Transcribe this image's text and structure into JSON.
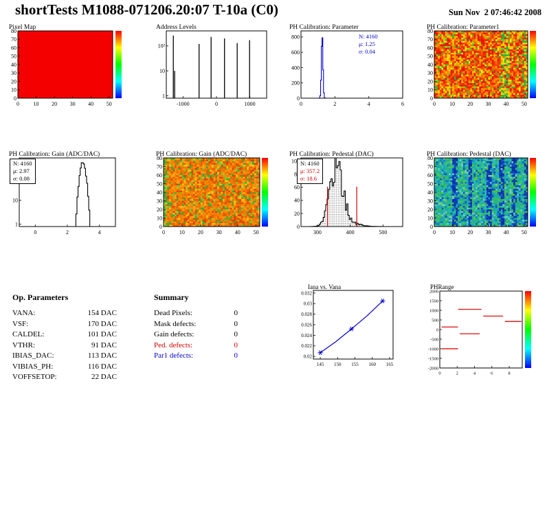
{
  "header": {
    "title": "shortTests M1088-071206.20:07 T-10a (C0)",
    "date": "Sun Nov  2 07:46:42 2008"
  },
  "op_parameters": {
    "heading": "Op. Parameters",
    "rows": [
      {
        "label": "VANA:",
        "value": "154 DAC"
      },
      {
        "label": "VSF:",
        "value": "170 DAC"
      },
      {
        "label": "CALDEL:",
        "value": "101 DAC"
      },
      {
        "label": "VTHR:",
        "value": "91 DAC"
      },
      {
        "label": "IBIAS_DAC:",
        "value": "113 DAC"
      },
      {
        "label": "VIBIAS_PH:",
        "value": "116 DAC"
      },
      {
        "label": "VOFFSETOP:",
        "value": "22 DAC"
      }
    ]
  },
  "summary": {
    "heading": "Summary",
    "rows": [
      {
        "label": "Dead Pixels:",
        "value": "0",
        "color": "#000000"
      },
      {
        "label": "Mask defects:",
        "value": "0",
        "color": "#000000"
      },
      {
        "label": "Gain defects:",
        "value": "0",
        "color": "#000000"
      },
      {
        "label": "Ped. defects:",
        "value": "0",
        "color": "#cc0000"
      },
      {
        "label": "Par1 defects:",
        "value": "0",
        "color": "#0000cc"
      }
    ]
  },
  "chart_data": [
    {
      "id": "pixel_map",
      "type": "solid_heatmap",
      "title": "Pixel Map",
      "x_range": [
        0,
        52
      ],
      "y_range": [
        0,
        80
      ],
      "xticks": [
        0,
        10,
        20,
        30,
        40,
        50
      ],
      "yticks": [
        0,
        10,
        20,
        30,
        40,
        50,
        60,
        70,
        80
      ],
      "fill": "#f40000",
      "colorbar": [
        "#ff0000",
        "#ffff00",
        "#00ff00",
        "#00ffff",
        "#0000ff"
      ]
    },
    {
      "id": "address_levels",
      "type": "spike_hist",
      "title": "Address Levels",
      "x_range": [
        -1500,
        1500
      ],
      "xticks": [
        -1000,
        0,
        1000
      ],
      "floor": 0.8,
      "ymax": 400,
      "log_labels": [
        {
          "v": 1,
          "label": "1"
        },
        {
          "v": 10,
          "label": "10"
        },
        {
          "v": 100,
          "label": "10²"
        }
      ],
      "spikes": [
        {
          "x": -1290,
          "count": 260
        },
        {
          "x": -1250,
          "count": 10
        },
        {
          "x": -520,
          "count": 120
        },
        {
          "x": -160,
          "count": 230
        },
        {
          "x": 240,
          "count": 200
        },
        {
          "x": 620,
          "count": 130
        },
        {
          "x": 990,
          "count": 170
        }
      ]
    },
    {
      "id": "ph_parameter",
      "type": "gauss_hist",
      "title": "PH Calibration: Parameter",
      "color": "#0000cc",
      "x_range": [
        0,
        6
      ],
      "xticks": [
        0,
        2,
        4,
        6
      ],
      "y_range": [
        0,
        880
      ],
      "yticks": [
        0,
        200,
        400,
        600,
        800
      ],
      "mean": 1.25,
      "sigma_draw": 0.045,
      "peak": 830,
      "bins": 140,
      "stats": {
        "n": "N: 4160",
        "mu": "μ: 1.25",
        "sigma": "σ: 0.04"
      },
      "stats_color": "#0000cc"
    },
    {
      "id": "ph_parameter1_map",
      "type": "noise_heatmap",
      "title": "PH Calibration: Parameter1",
      "x_range": [
        0,
        52
      ],
      "y_range": [
        0,
        80
      ],
      "xticks": [
        0,
        10,
        20,
        30,
        40,
        50
      ],
      "yticks": [
        0,
        10,
        20,
        30,
        40,
        50,
        60,
        70,
        80
      ],
      "seed": 7,
      "palette": [
        [
          "#e81800",
          26
        ],
        [
          "#f23b00",
          20
        ],
        [
          "#fa6a00",
          16
        ],
        [
          "#ff9100",
          12
        ],
        [
          "#ffc400",
          9
        ],
        [
          "#ffe800",
          6
        ],
        [
          "#9fd400",
          5
        ],
        [
          "#37b33c",
          6
        ]
      ],
      "streaks": [
        {
          "x0": 7,
          "x1": 9,
          "colors": [
            "#7cc832",
            "#ffd800"
          ],
          "p": 0.35
        },
        {
          "x0": 37.5,
          "x1": 41.5,
          "colors": [
            "#2fae3e",
            "#7cc832",
            "#ffd800"
          ],
          "p": 0.6
        },
        {
          "x0": 49,
          "x1": 52,
          "colors": [
            "#2fae3e",
            "#ffd800"
          ],
          "p": 0.5
        }
      ],
      "colorbar": [
        "#ff0000",
        "#ffff00",
        "#00ff00",
        "#00ffff",
        "#0000ff"
      ]
    },
    {
      "id": "gain_hist",
      "type": "gauss_hist_log",
      "title": "PH Calibration: Gain (ADC/DAC)",
      "color": "#000000",
      "x_range": [
        -1,
        5
      ],
      "xticks": [
        0,
        2,
        4
      ],
      "floor": 0.8,
      "ymax": 600,
      "log_labels": [
        {
          "v": 1,
          "label": "1"
        },
        {
          "v": 10,
          "label": "10"
        },
        {
          "v": 100,
          "label": "10²"
        }
      ],
      "mean": 2.97,
      "sigma_draw": 0.13,
      "peak": 380,
      "bins": 90,
      "jitter": 0.15,
      "seed": 11,
      "stats": {
        "n": "N: 4160",
        "mu": "μ: 2.97",
        "sigma": "σ: 0.08"
      }
    },
    {
      "id": "gain_map",
      "type": "noise_heatmap",
      "title": "PH Calibration: Gain (ADC/DAC)",
      "x_range": [
        0,
        52
      ],
      "y_range": [
        0,
        80
      ],
      "xticks": [
        0,
        10,
        20,
        30,
        40,
        50
      ],
      "yticks": [
        0,
        10,
        20,
        30,
        40,
        50,
        60,
        70,
        80
      ],
      "seed": 13,
      "palette": [
        [
          "#f07800",
          26
        ],
        [
          "#fb8f00",
          20
        ],
        [
          "#e85c00",
          16
        ],
        [
          "#d84400",
          10
        ],
        [
          "#ffa81e",
          8
        ],
        [
          "#ffc800",
          5
        ],
        [
          "#7cc832",
          7
        ],
        [
          "#2fae3e",
          8
        ]
      ],
      "streaks": [
        {
          "x0": 0,
          "x1": 1.5,
          "colors": [
            "#2fae3e",
            "#7cc832"
          ],
          "p": 0.5
        }
      ],
      "colorbar": [
        "#ff0000",
        "#ffff00",
        "#00ff00",
        "#00ffff",
        "#0000ff"
      ]
    },
    {
      "id": "pedestal_hist",
      "type": "gauss_hist",
      "title": "PH Calibration: Pedestal (DAC)",
      "color": "#000000",
      "hatch": true,
      "x_range": [
        250,
        560
      ],
      "xticks": [
        300,
        400,
        500
      ],
      "y_range": [
        0,
        105
      ],
      "yticks": [
        0,
        20,
        40,
        60,
        80,
        100
      ],
      "mean": 357.2,
      "sigma_draw": 19,
      "peak": 100,
      "bins": 78,
      "jitter": 0.35,
      "seed": 17,
      "tail": {
        "peak": 6,
        "mean": 395,
        "sigma": 30
      },
      "red_lines": [
        331,
        420
      ],
      "stats": {
        "n": "N: 4160",
        "mu": "μ: 357.2",
        "sigma": "σ: 18.6"
      },
      "stats_color": "#cc0000"
    },
    {
      "id": "pedestal_map",
      "type": "noise_heatmap",
      "title": "PH Calibration: Pedestal (DAC)",
      "x_range": [
        0,
        52
      ],
      "y_range": [
        0,
        80
      ],
      "xticks": [
        0,
        10,
        20,
        30,
        40,
        50
      ],
      "yticks": [
        0,
        10,
        20,
        30,
        40,
        50,
        60,
        70,
        80
      ],
      "seed": 21,
      "palette": [
        [
          "#18b2a0",
          22
        ],
        [
          "#2cc4a4",
          16
        ],
        [
          "#35b864",
          14
        ],
        [
          "#1fa0c8",
          14
        ],
        [
          "#56c83c",
          10
        ],
        [
          "#1478c8",
          8
        ],
        [
          "#78d0b4",
          8
        ],
        [
          "#0f50b4",
          8
        ]
      ],
      "streaks": [
        {
          "x0": 10.5,
          "x1": 12.5,
          "colors": [
            "#0c2fa8",
            "#1446c8"
          ],
          "p": 0.65
        },
        {
          "x0": 19,
          "x1": 21,
          "colors": [
            "#0c2fa8",
            "#1446c8"
          ],
          "p": 0.65
        },
        {
          "x0": 29.5,
          "x1": 31.5,
          "colors": [
            "#0c2fa8",
            "#1446c8"
          ],
          "p": 0.65
        },
        {
          "x0": 36.5,
          "x1": 38.5,
          "colors": [
            "#0c2fa8",
            "#1446c8"
          ],
          "p": 0.65
        },
        {
          "x0": 43.5,
          "x1": 45.5,
          "colors": [
            "#0c2fa8",
            "#1446c8"
          ],
          "p": 0.6
        },
        {
          "x0": 50,
          "x1": 52,
          "colors": [
            "#0c2fa8",
            "#1446c8"
          ],
          "p": 0.55
        }
      ],
      "colorbar": [
        "#ff0000",
        "#ffff00",
        "#00ff00",
        "#00ffff",
        "#0000ff"
      ]
    },
    {
      "id": "iana_vana",
      "type": "line",
      "title": "Iana vs. Vana",
      "color": "#0000cc",
      "x_range": [
        143,
        166
      ],
      "xticks": [
        145,
        150,
        155,
        160,
        165
      ],
      "y_range": [
        0.0195,
        0.0325
      ],
      "yticks": [
        0.02,
        0.022,
        0.024,
        0.026,
        0.028,
        0.03,
        0.032
      ],
      "points": [
        [
          145,
          0.0207
        ],
        [
          149.5,
          0.0228
        ],
        [
          154,
          0.0252
        ],
        [
          158.5,
          0.0277
        ],
        [
          163,
          0.0305
        ]
      ],
      "markers": [
        [
          145,
          0.0207
        ],
        [
          154,
          0.0252
        ],
        [
          163,
          0.0305
        ]
      ]
    },
    {
      "id": "phrange",
      "type": "segments",
      "title": "PHRange",
      "color": "#e02020",
      "x_range": [
        0,
        9.5
      ],
      "xticks": [
        0,
        2,
        4,
        6,
        8
      ],
      "y_range": [
        -2000,
        2000
      ],
      "yticks": [
        2000,
        1500,
        1000,
        500,
        0,
        -500,
        -1000,
        -1500,
        -2000
      ],
      "segments": [
        {
          "y": 1050,
          "x1": 2.1,
          "x2": 4.8
        },
        {
          "y": 700,
          "x1": 5.0,
          "x2": 7.3
        },
        {
          "y": 420,
          "x1": 7.5,
          "x2": 9.4
        },
        {
          "y": 130,
          "x1": 0.2,
          "x2": 2.1
        },
        {
          "y": -220,
          "x1": 2.3,
          "x2": 4.6
        },
        {
          "y": -1000,
          "x1": 0.2,
          "x2": 2.1
        }
      ],
      "colorbar": [
        "#ff0000",
        "#ffff00",
        "#00ff00",
        "#00ffff",
        "#0000ff"
      ]
    }
  ]
}
